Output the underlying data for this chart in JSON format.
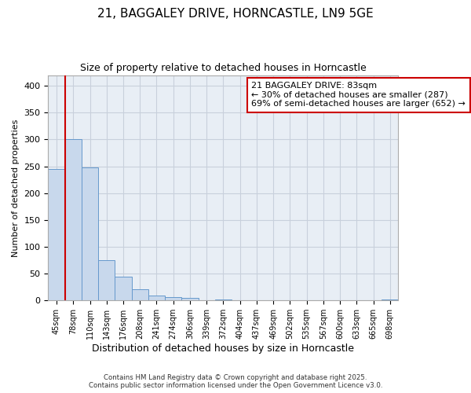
{
  "title1": "21, BAGGALEY DRIVE, HORNCASTLE, LN9 5GE",
  "title2": "Size of property relative to detached houses in Horncastle",
  "xlabel": "Distribution of detached houses by size in Horncastle",
  "ylabel": "Number of detached properties",
  "bar_labels": [
    "45sqm",
    "78sqm",
    "110sqm",
    "143sqm",
    "176sqm",
    "208sqm",
    "241sqm",
    "274sqm",
    "306sqm",
    "339sqm",
    "372sqm",
    "404sqm",
    "437sqm",
    "469sqm",
    "502sqm",
    "535sqm",
    "567sqm",
    "600sqm",
    "633sqm",
    "665sqm",
    "698sqm"
  ],
  "bar_values": [
    245,
    300,
    248,
    75,
    45,
    21,
    9,
    7,
    5,
    0,
    2,
    0,
    0,
    0,
    1,
    0,
    0,
    0,
    0,
    0,
    2
  ],
  "bar_color": "#c8d8ec",
  "bar_edge_color": "#6699cc",
  "vline_x": 0.5,
  "vline_color": "#cc0000",
  "annotation_text": "21 BAGGALEY DRIVE: 83sqm\n← 30% of detached houses are smaller (287)\n69% of semi-detached houses are larger (652) →",
  "annotation_box_color": "#ffffff",
  "annotation_box_edge": "#cc0000",
  "ylim": [
    0,
    420
  ],
  "yticks": [
    0,
    50,
    100,
    150,
    200,
    250,
    300,
    350,
    400
  ],
  "grid_color": "#c8d0dc",
  "bg_color": "#e8eef5",
  "fig_color": "#ffffff",
  "footer1": "Contains HM Land Registry data © Crown copyright and database right 2025.",
  "footer2": "Contains public sector information licensed under the Open Government Licence v3.0."
}
